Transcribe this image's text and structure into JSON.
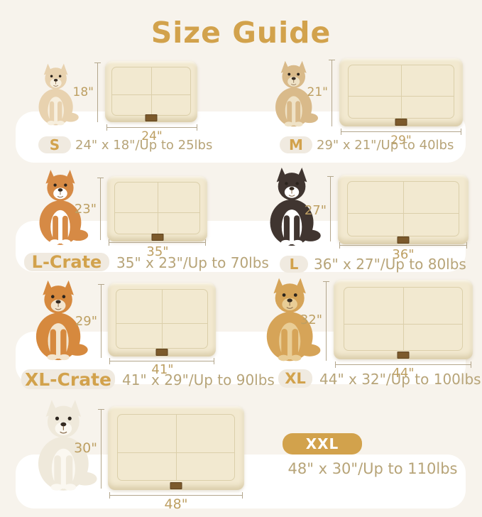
{
  "title": "Size Guide",
  "colors": {
    "bg": "#F7F3EC",
    "band": "#FFFFFF",
    "gold": "#D2A24C",
    "pill": "#F0EAE0",
    "spec": "#B7A478",
    "dimtext": "#BD9F62",
    "dimline": "#B3A68C",
    "mat": "#F2E9D0",
    "seam": "#DBCFAA"
  },
  "sizes": [
    {
      "id": "s",
      "label": "S",
      "spec": "24\" x 18\"/Up to 25lbs",
      "width_label": "24\"",
      "height_label": "18\"",
      "dog": {
        "name": "chihuahua",
        "body": "#E8D2AF",
        "accent": "#F7EFDE"
      }
    },
    {
      "id": "m",
      "label": "M",
      "spec": "29\" x 21\"/Up to 40lbs",
      "width_label": "29\"",
      "height_label": "21\"",
      "dog": {
        "name": "havanese-puppy",
        "body": "#D9BA8A",
        "accent": "#EFE2C6"
      }
    },
    {
      "id": "lc",
      "label": "L-Crate",
      "spec": "35\" x 23\"/Up to 70lbs",
      "width_label": "35\"",
      "height_label": "23\"",
      "dog": {
        "name": "corgi",
        "body": "#D68A45",
        "accent": "#FFFFFF"
      }
    },
    {
      "id": "l",
      "label": "L",
      "spec": "36\" x 27\"/Up to 80lbs",
      "width_label": "36\"",
      "height_label": "27\"",
      "dog": {
        "name": "border-collie",
        "body": "#403530",
        "accent": "#FFFFFF"
      }
    },
    {
      "id": "xlc",
      "label": "XL-Crate",
      "spec": "41\" x 29\"/Up to 90lbs",
      "width_label": "41\"",
      "height_label": "29\"",
      "dog": {
        "name": "shiba-inu",
        "body": "#D6893E",
        "accent": "#F3E5CE"
      }
    },
    {
      "id": "xl",
      "label": "XL",
      "spec": "44\" x 32\"/Up to 100lbs",
      "width_label": "44\"",
      "height_label": "32\"",
      "dog": {
        "name": "golden-retriever",
        "body": "#D6A458",
        "accent": "#E9CD96"
      }
    },
    {
      "id": "xxl",
      "label": "XXL",
      "spec": "48\" x 30\"/Up to 110lbs",
      "width_label": "48\"",
      "height_label": "30\"",
      "dog": {
        "name": "white-golden-retriever",
        "body": "#EFE9DB",
        "accent": "#FBF8F1"
      }
    }
  ]
}
